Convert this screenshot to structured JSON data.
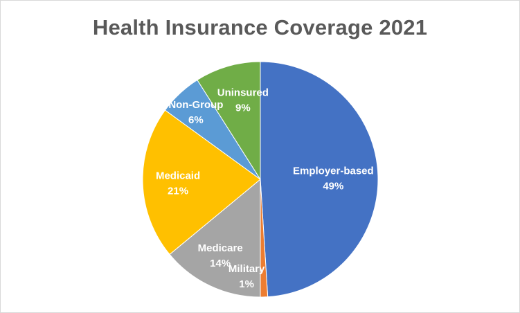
{
  "chart_data": {
    "type": "pie",
    "title": "Health Insurance Coverage 2021",
    "categories": [
      "Employer-based",
      "Military",
      "Medicare",
      "Medicaid",
      "Non-Group",
      "Uninsured"
    ],
    "values": [
      49,
      1,
      14,
      21,
      6,
      9
    ],
    "value_labels": [
      "49%",
      "1%",
      "14%",
      "21%",
      "6%",
      "9%"
    ],
    "colors": [
      "#4472c4",
      "#ed7d31",
      "#a5a5a5",
      "#ffc000",
      "#5b9bd5",
      "#70ad47"
    ],
    "start_angle": "12 o'clock",
    "direction": "clockwise",
    "data_labels": "category and percent, inside slices",
    "legend": "none"
  }
}
